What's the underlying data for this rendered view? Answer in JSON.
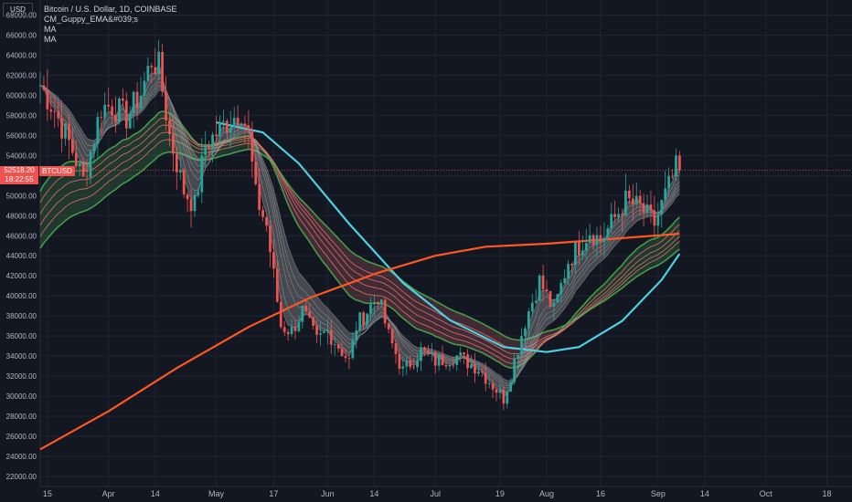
{
  "header": {
    "currency": "USD",
    "symbol_line": "Bitcoin / U.S. Dollar, 1D, COINBASE",
    "indicators": [
      "CM_Guppy_EMA&#039;s",
      "MA",
      "MA"
    ]
  },
  "last_price": {
    "value": "52518.20",
    "countdown": "18:22:55",
    "symbol": "BTCUSD",
    "color": "#ef5350"
  },
  "colors": {
    "background": "#131722",
    "grid": "#1f2430",
    "up_candle": "#26a69a",
    "down_candle": "#ef5350",
    "ma_fast": "#4dd0e1",
    "ma_slow": "#ff5722",
    "guppy_short": "#bdbdbd",
    "guppy_long_bull": "#4caf50",
    "guppy_long_bear": "#e57373"
  },
  "chart_data": {
    "type": "candlestick",
    "title": "Bitcoin / U.S. Dollar, 1D, COINBASE",
    "y_ticks": [
      22000,
      24000,
      26000,
      28000,
      30000,
      32000,
      34000,
      36000,
      38000,
      40000,
      42000,
      44000,
      46000,
      48000,
      50000,
      52000,
      54000,
      56000,
      58000,
      60000,
      62000,
      64000,
      66000,
      68000
    ],
    "ylim": [
      21000,
      69500
    ],
    "x_ticks": [
      "15",
      "Apr",
      "14",
      "May",
      "17",
      "Jun",
      "14",
      "Jul",
      "19",
      "Aug",
      "16",
      "Sep",
      "14",
      "Oct",
      "18"
    ],
    "x_tick_dates": [
      "2021-03-15",
      "2021-04-01",
      "2021-04-14",
      "2021-05-01",
      "2021-05-17",
      "2021-06-01",
      "2021-06-14",
      "2021-07-01",
      "2021-07-19",
      "2021-08-01",
      "2021-08-16",
      "2021-09-01",
      "2021-09-14",
      "2021-10-01",
      "2021-10-18"
    ],
    "xlim": [
      "2021-03-13",
      "2021-10-25"
    ],
    "price_path": [
      [
        "2021-03-13",
        61000
      ],
      [
        "2021-03-17",
        58500
      ],
      [
        "2021-03-22",
        54500
      ],
      [
        "2021-03-25",
        51500
      ],
      [
        "2021-03-30",
        58800
      ],
      [
        "2021-04-02",
        59000
      ],
      [
        "2021-04-06",
        57800
      ],
      [
        "2021-04-10",
        60200
      ],
      [
        "2021-04-13",
        63500
      ],
      [
        "2021-04-15",
        62800
      ],
      [
        "2021-04-18",
        56000
      ],
      [
        "2021-04-22",
        50500
      ],
      [
        "2021-04-25",
        49000
      ],
      [
        "2021-04-28",
        55000
      ],
      [
        "2021-05-03",
        57000
      ],
      [
        "2021-05-08",
        58500
      ],
      [
        "2021-05-10",
        56000
      ],
      [
        "2021-05-12",
        50000
      ],
      [
        "2021-05-15",
        47000
      ],
      [
        "2021-05-19",
        37000
      ],
      [
        "2021-05-22",
        36500
      ],
      [
        "2021-05-25",
        38500
      ],
      [
        "2021-05-29",
        35500
      ],
      [
        "2021-06-01",
        36500
      ],
      [
        "2021-06-07",
        33500
      ],
      [
        "2021-06-09",
        37000
      ],
      [
        "2021-06-15",
        40000
      ],
      [
        "2021-06-18",
        36000
      ],
      [
        "2021-06-22",
        32500
      ],
      [
        "2021-06-27",
        34500
      ],
      [
        "2021-07-01",
        33500
      ],
      [
        "2021-07-07",
        34000
      ],
      [
        "2021-07-13",
        32800
      ],
      [
        "2021-07-20",
        29800
      ],
      [
        "2021-07-22",
        32200
      ],
      [
        "2021-07-26",
        37500
      ],
      [
        "2021-07-30",
        41500
      ],
      [
        "2021-08-03",
        38500
      ],
      [
        "2021-08-07",
        43500
      ],
      [
        "2021-08-13",
        46500
      ],
      [
        "2021-08-16",
        45500
      ],
      [
        "2021-08-23",
        49500
      ],
      [
        "2021-08-27",
        48800
      ],
      [
        "2021-08-31",
        47200
      ],
      [
        "2021-09-03",
        50000
      ],
      [
        "2021-09-06",
        52700
      ],
      [
        "2021-09-07",
        52518.2
      ]
    ],
    "last_close": 52518.2,
    "ma_fast_path": [
      [
        "2021-05-01",
        57300
      ],
      [
        "2021-05-14",
        56300
      ],
      [
        "2021-05-24",
        53200
      ],
      [
        "2021-06-07",
        47200
      ],
      [
        "2021-06-22",
        41300
      ],
      [
        "2021-07-05",
        37600
      ],
      [
        "2021-07-20",
        34900
      ],
      [
        "2021-08-01",
        34400
      ],
      [
        "2021-08-10",
        34900
      ],
      [
        "2021-08-22",
        37500
      ],
      [
        "2021-09-02",
        41600
      ],
      [
        "2021-09-07",
        44200
      ]
    ],
    "ma_slow_path": [
      [
        "2021-03-13",
        24700
      ],
      [
        "2021-04-01",
        28500
      ],
      [
        "2021-04-20",
        32800
      ],
      [
        "2021-05-10",
        36900
      ],
      [
        "2021-05-27",
        39800
      ],
      [
        "2021-06-15",
        42300
      ],
      [
        "2021-07-01",
        44000
      ],
      [
        "2021-07-15",
        44900
      ],
      [
        "2021-08-01",
        45200
      ],
      [
        "2021-08-16",
        45600
      ],
      [
        "2021-09-07",
        46200
      ]
    ]
  }
}
